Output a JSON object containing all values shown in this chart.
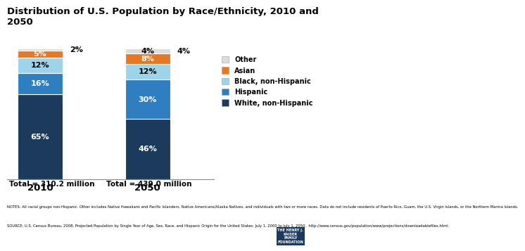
{
  "title": "Distribution of U.S. Population by Race/Ethnicity, 2010 and\n2050",
  "years": [
    "2010",
    "2050"
  ],
  "subtitles": [
    "Total = 310.2 million",
    "Total = 439.0 million"
  ],
  "categories": [
    "White, non-Hispanic",
    "Hispanic",
    "Black, non-Hispanic",
    "Asian",
    "Other"
  ],
  "values_2010": [
    65,
    16,
    12,
    5,
    2
  ],
  "values_2050": [
    46,
    30,
    12,
    8,
    4
  ],
  "colors": [
    "#1b3a5c",
    "#2e7ec1",
    "#9dd4ea",
    "#e87722",
    "#dcdcdc"
  ],
  "bar_width": 0.55,
  "notes_line1": "NOTES: All racial groups non-Hispanic. Other includes Native Hawaiians and Pacific Islanders, Native Americans/Alaska Natives, and individuals with two or more races. Data do not include residents of Puerto Rico, Guam, the U.S. Virgin Islands, or the Northern Marina Islands.",
  "notes_line2": "SOURCE: U.S. Census Bureau, 2008, Projected Population by Single Year of Age, Sex, Race, and Hispanic Origin for the United States: July 1, 2000 to July 1, 2050.  http://www.census.gov/population/www/projections/downloadablefiles.html.",
  "legend_labels": [
    "Other",
    "Asian",
    "Black, non-Hispanic",
    "Hispanic",
    "White, non-Hispanic"
  ],
  "legend_colors": [
    "#dcdcdc",
    "#e87722",
    "#9dd4ea",
    "#2e7ec1",
    "#1b3a5c"
  ],
  "background_color": "#ffffff",
  "text_colors_2010": [
    "white",
    "white",
    "black",
    "white",
    "black"
  ],
  "text_colors_2050": [
    "white",
    "white",
    "black",
    "white",
    "black"
  ]
}
